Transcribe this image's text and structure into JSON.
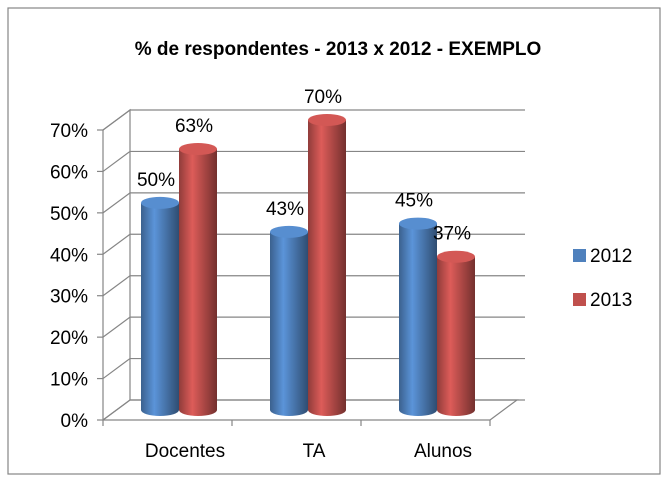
{
  "chart_data": {
    "type": "bar3d",
    "title": "%  de respondentes - 2013 x 2012 - EXEMPLO",
    "categories": [
      "Docentes",
      "TA",
      "Alunos"
    ],
    "series": [
      {
        "name": "2012",
        "color": "#4f81bd",
        "values": [
          50,
          43,
          45
        ],
        "value_labels": [
          "50%",
          "43%",
          "45%"
        ]
      },
      {
        "name": "2013",
        "color": "#c0504d",
        "values": [
          63,
          70,
          37
        ],
        "value_labels": [
          "63%",
          "70%",
          "37%"
        ]
      }
    ],
    "ylim": [
      0,
      70
    ],
    "yticks": [
      {
        "value": 0,
        "label": "0%"
      },
      {
        "value": 10,
        "label": "10%"
      },
      {
        "value": 20,
        "label": "20%"
      },
      {
        "value": 30,
        "label": "30%"
      },
      {
        "value": 40,
        "label": "40%"
      },
      {
        "value": 50,
        "label": "50%"
      },
      {
        "value": 60,
        "label": "60%"
      },
      {
        "value": 70,
        "label": "70%"
      }
    ],
    "grid": true,
    "legend": "right"
  }
}
